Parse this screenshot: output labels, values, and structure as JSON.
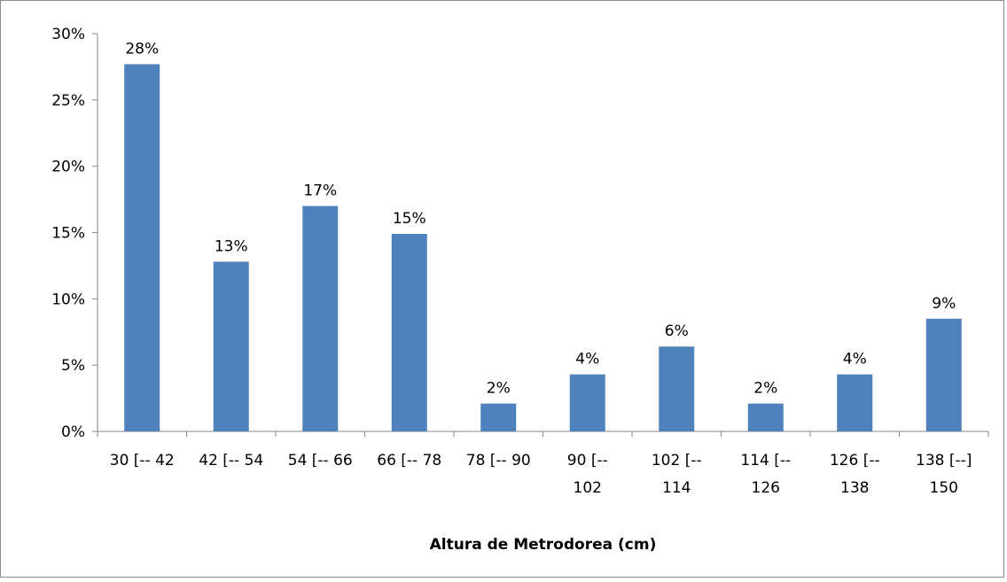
{
  "chart_data": {
    "type": "bar",
    "title": "",
    "xlabel": "Altura de Metrodorea (cm)",
    "ylabel": "",
    "ylim": [
      0,
      30
    ],
    "yticks": [
      0,
      5,
      10,
      15,
      20,
      25,
      30
    ],
    "ytick_labels": [
      "0%",
      "5%",
      "10%",
      "15%",
      "20%",
      "25%",
      "30%"
    ],
    "categories": [
      "30 [-- 42",
      "42 [-- 54",
      "54 [-- 66",
      "66 [-- 78",
      "78 [-- 90",
      "90 [-- 102",
      "102 [-- 114",
      "114 [-- 126",
      "126 [-- 138",
      "138 [--] 150"
    ],
    "category_lines": [
      [
        "30 [-- 42"
      ],
      [
        "42 [-- 54"
      ],
      [
        "54 [-- 66"
      ],
      [
        "66 [-- 78"
      ],
      [
        "78 [-- 90"
      ],
      [
        "90 [--",
        "102"
      ],
      [
        "102 [--",
        "114"
      ],
      [
        "114 [--",
        "126"
      ],
      [
        "126 [--",
        "138"
      ],
      [
        "138 [--]",
        "150"
      ]
    ],
    "values": [
      27.7,
      12.8,
      17.0,
      14.9,
      2.1,
      4.3,
      6.4,
      2.1,
      4.3,
      8.5
    ],
    "data_labels": [
      "28%",
      "13%",
      "17%",
      "15%",
      "2%",
      "4%",
      "6%",
      "2%",
      "4%",
      "9%"
    ],
    "bar_color": "#4f81bd",
    "grid": false,
    "legend": "none"
  }
}
